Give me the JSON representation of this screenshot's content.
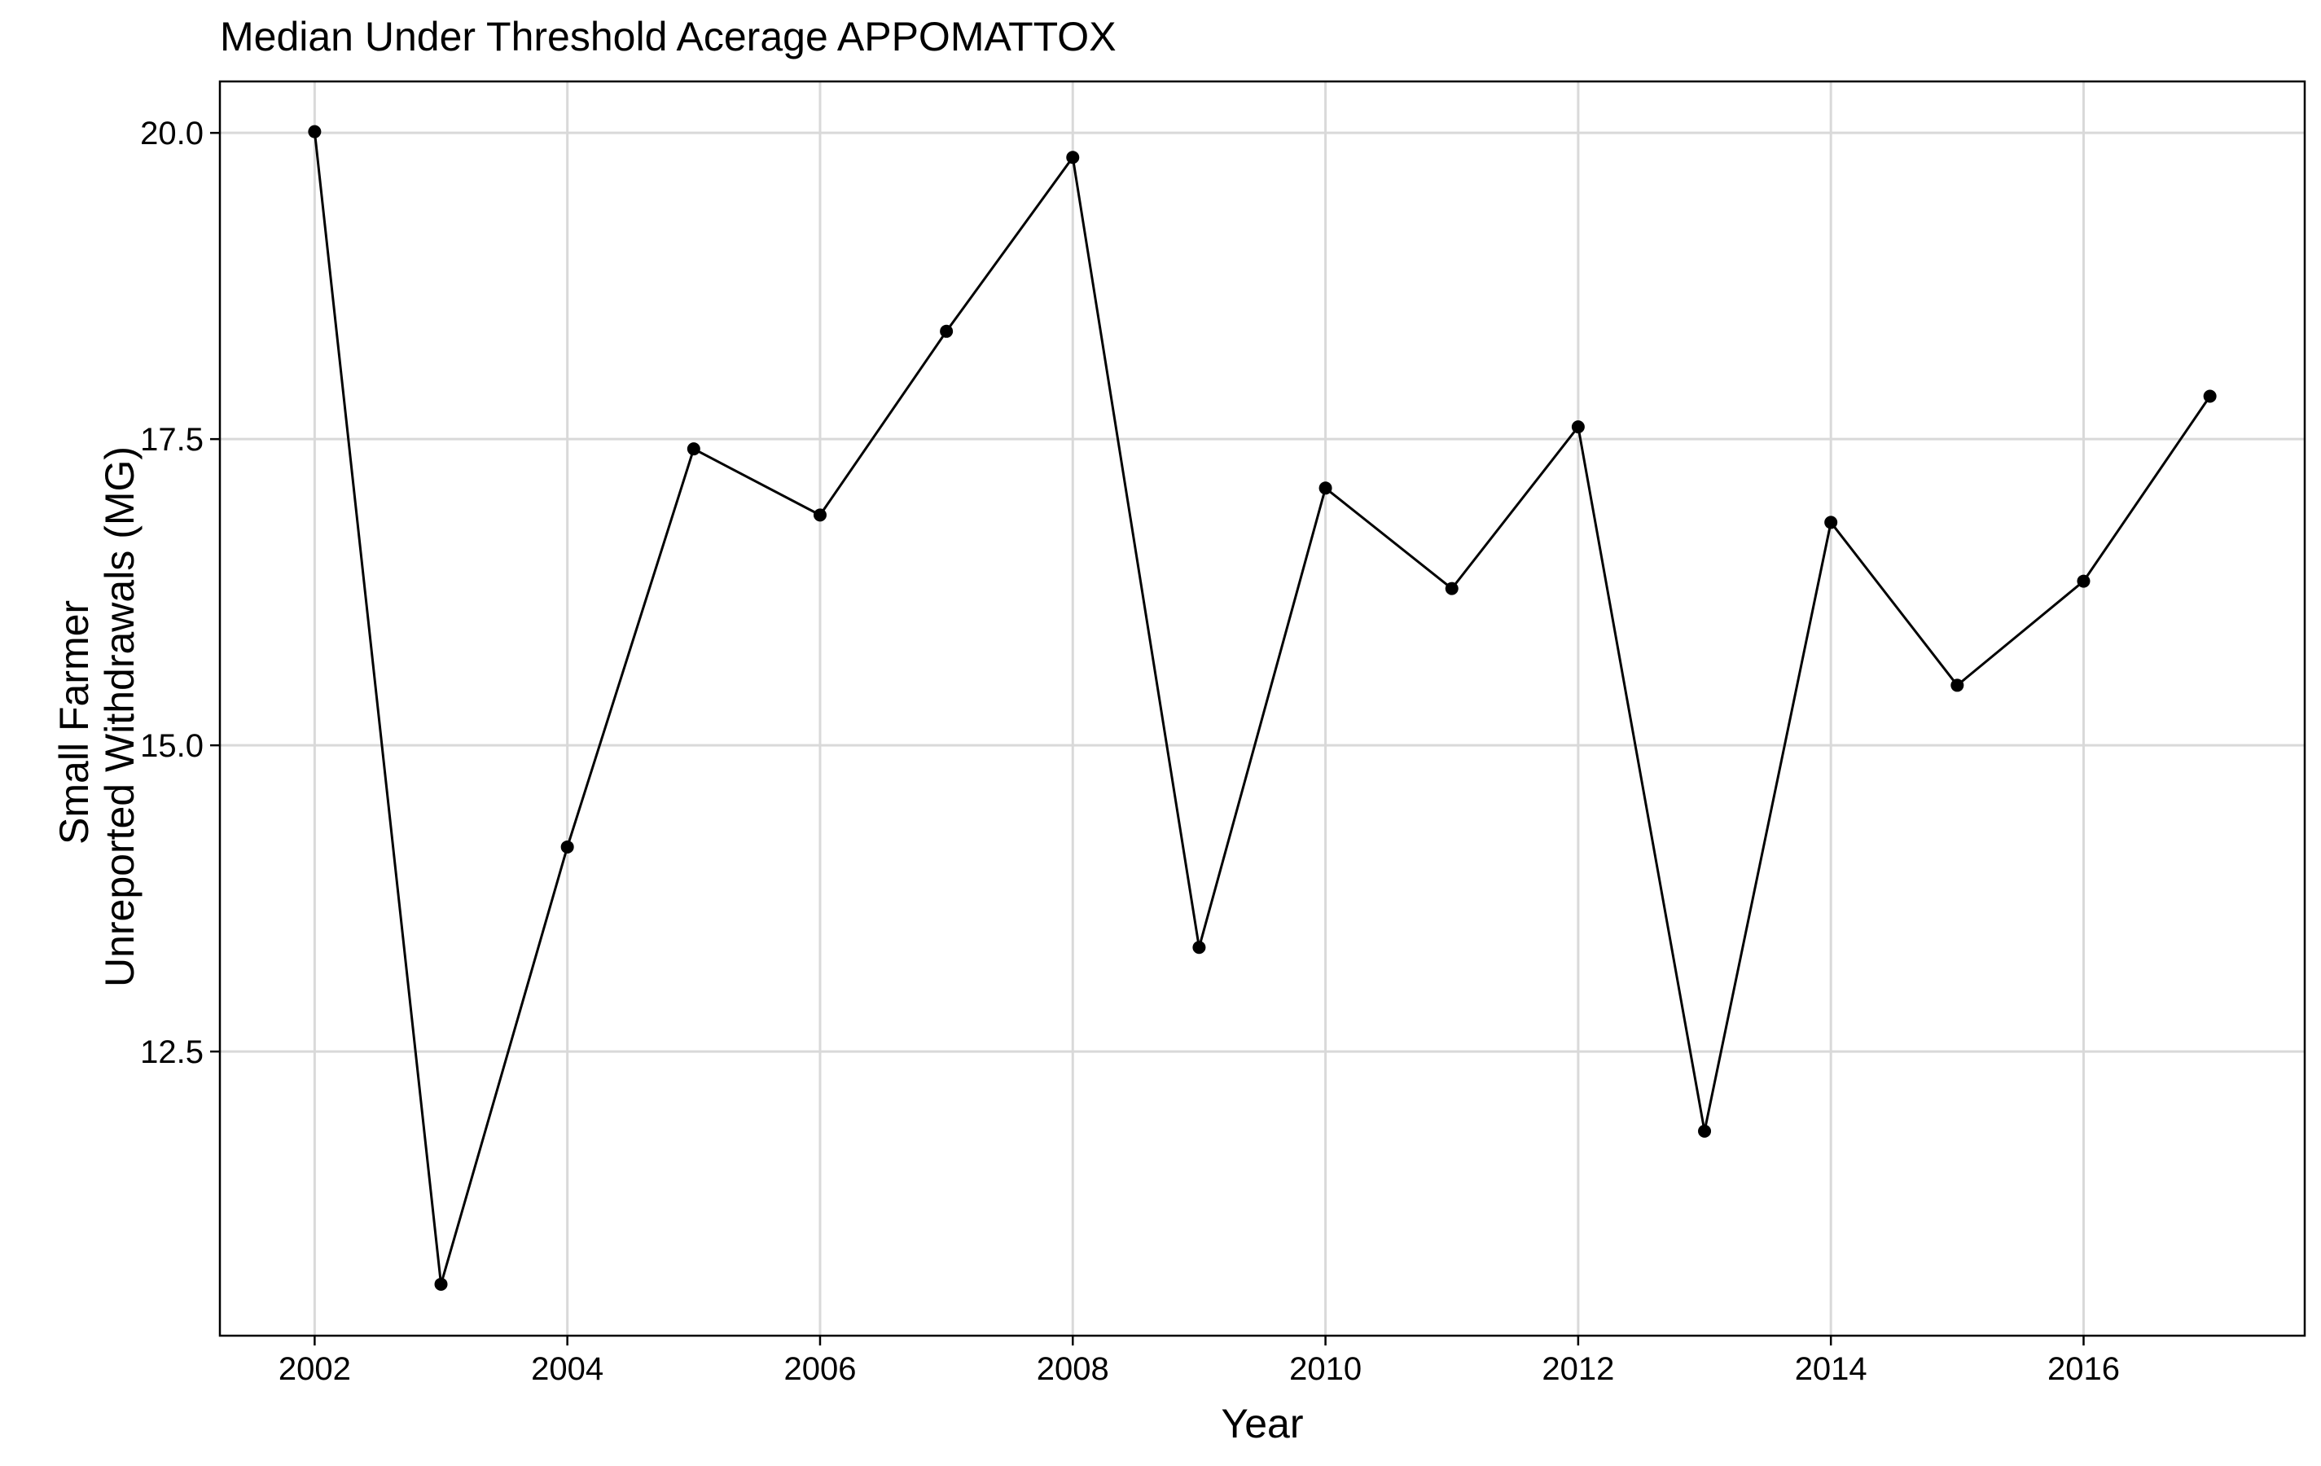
{
  "chart_data": {
    "type": "line",
    "title": "Median Under Threshold Acerage APPOMATTOX",
    "xlabel": "Year",
    "ylabel": [
      "Small Farmer",
      "Unreported Withdrawals (MG)"
    ],
    "xlim": [
      2001.25,
      2017.75
    ],
    "ylim": [
      10.18,
      20.42
    ],
    "x_ticks": [
      2002,
      2004,
      2006,
      2008,
      2010,
      2012,
      2014,
      2016
    ],
    "x_tick_labels": [
      "2002",
      "2004",
      "2006",
      "2008",
      "2010",
      "2012",
      "2014",
      "2016"
    ],
    "y_ticks": [
      12.5,
      15.0,
      17.5,
      20.0
    ],
    "y_tick_labels": [
      "12.5",
      "15.0",
      "17.5",
      "20.0"
    ],
    "grid": true,
    "series": [
      {
        "x": [
          2002,
          2003,
          2004,
          2005,
          2006,
          2007,
          2008,
          2009,
          2010,
          2011,
          2012,
          2013,
          2014,
          2015,
          2016,
          2017
        ],
        "y": [
          20.01,
          10.6,
          14.17,
          17.42,
          16.88,
          18.38,
          19.8,
          13.35,
          17.1,
          16.28,
          17.6,
          11.85,
          16.82,
          15.49,
          16.34,
          17.85
        ],
        "color": "#000000"
      }
    ]
  }
}
